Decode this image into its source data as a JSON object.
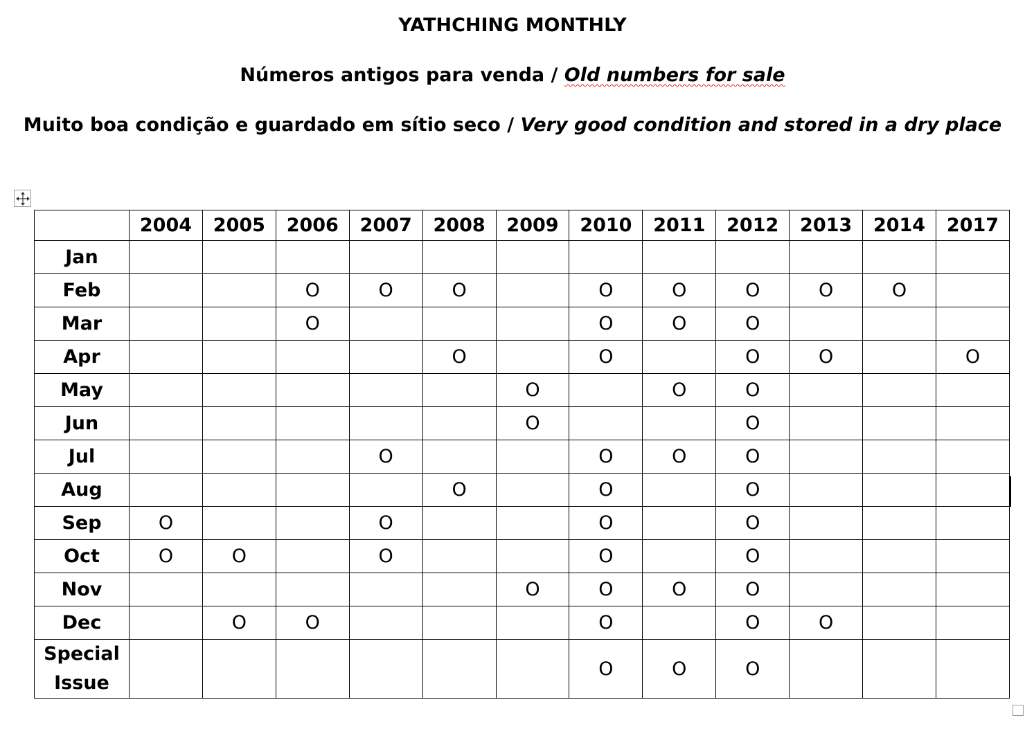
{
  "header": {
    "title": "YATHCHING MONTHLY",
    "subtitle_pt": "Números antigos para venda / ",
    "subtitle_en": "Old numbers for sale",
    "note_pt": "Muito boa condição e guardado em sítio seco / ",
    "note_en": "Very good condition and stored in a dry place"
  },
  "table": {
    "corner": "",
    "years": [
      "2004",
      "2005",
      "2006",
      "2007",
      "2008",
      "2009",
      "2010",
      "2011",
      "2012",
      "2013",
      "2014",
      "2017"
    ],
    "mark": "O",
    "rows": [
      {
        "label": "Jan",
        "cells": [
          "",
          "",
          "",
          "",
          "",
          "",
          "",
          "",
          "",
          "",
          "",
          ""
        ]
      },
      {
        "label": "Feb",
        "cells": [
          "",
          "",
          "O",
          "O",
          "O",
          "",
          "O",
          "O",
          "O",
          "O",
          "O",
          ""
        ]
      },
      {
        "label": "Mar",
        "cells": [
          "",
          "",
          "O",
          "",
          "",
          "",
          "O",
          "O",
          "O",
          "",
          "",
          ""
        ]
      },
      {
        "label": "Apr",
        "cells": [
          "",
          "",
          "",
          "",
          "O",
          "",
          "O",
          "",
          "O",
          "O",
          "",
          "O"
        ]
      },
      {
        "label": "May",
        "cells": [
          "",
          "",
          "",
          "",
          "",
          "O",
          "",
          "O",
          "O",
          "",
          "",
          ""
        ]
      },
      {
        "label": "Jun",
        "cells": [
          "",
          "",
          "",
          "",
          "",
          "O",
          "",
          "",
          "O",
          "",
          "",
          ""
        ]
      },
      {
        "label": "Jul",
        "cells": [
          "",
          "",
          "",
          "O",
          "",
          "",
          "O",
          "O",
          "O",
          "",
          "",
          ""
        ]
      },
      {
        "label": "Aug",
        "cells": [
          "",
          "",
          "",
          "",
          "O",
          "",
          "O",
          "",
          "O",
          "",
          "",
          ""
        ]
      },
      {
        "label": "Sep",
        "cells": [
          "O",
          "",
          "",
          "O",
          "",
          "",
          "O",
          "",
          "O",
          "",
          "",
          ""
        ]
      },
      {
        "label": "Oct",
        "cells": [
          "O",
          "O",
          "",
          "O",
          "",
          "",
          "O",
          "",
          "O",
          "",
          "",
          ""
        ]
      },
      {
        "label": "Nov",
        "cells": [
          "",
          "",
          "",
          "",
          "",
          "O",
          "O",
          "O",
          "O",
          "",
          "",
          ""
        ]
      },
      {
        "label": "Dec",
        "cells": [
          "",
          "O",
          "O",
          "",
          "",
          "",
          "O",
          "",
          "O",
          "O",
          "",
          ""
        ]
      },
      {
        "label": "Special Issue",
        "cells": [
          "",
          "",
          "",
          "",
          "",
          "",
          "O",
          "O",
          "O",
          "",
          "",
          ""
        ]
      }
    ]
  },
  "icons": {
    "move_handle": "move-arrows-icon",
    "resize_handle": "resize-handle-icon"
  }
}
